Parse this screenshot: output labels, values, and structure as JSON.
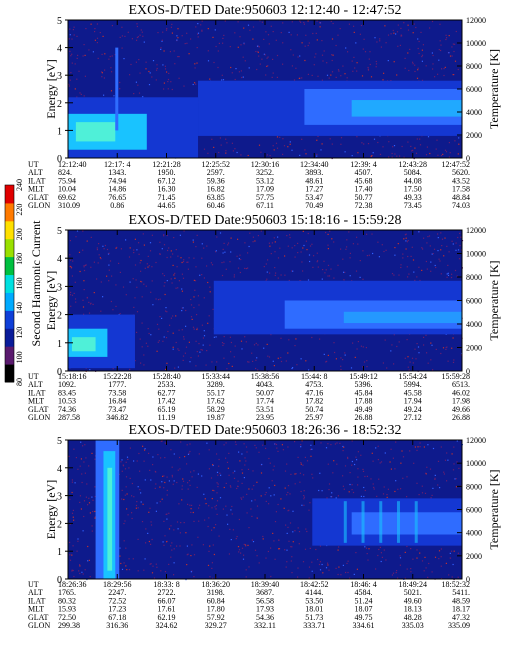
{
  "colorbar": {
    "label": "Second Harmonic Current",
    "ticks": [
      "80",
      "100",
      "120",
      "140",
      "160",
      "180",
      "200",
      "220",
      "240"
    ],
    "colors": [
      "#000000",
      "#5a1a6e",
      "#0a1c9a",
      "#0f3fd8",
      "#00aaff",
      "#00e0e0",
      "#00c040",
      "#9ae000",
      "#ffe000",
      "#ff7a00",
      "#e00000"
    ]
  },
  "row_labels": [
    "UT",
    "ALT",
    "ILAT",
    "MLT",
    "GLAT",
    "GLON"
  ],
  "chart_data": [
    {
      "type": "heatmap",
      "title": "EXOS-D/TED   Date:950603   12:12:40 - 12:47:52",
      "ylabel": "Energy [eV]",
      "y2label": "Temperature [K]",
      "ylim": [
        0,
        5
      ],
      "y2lim": [
        0,
        12000
      ],
      "yticks": [
        "0",
        "1",
        "2",
        "3",
        "4",
        "5"
      ],
      "y2ticks": [
        "0",
        "2000",
        "4000",
        "6000",
        "8000",
        "10000",
        "12000"
      ],
      "table": [
        [
          "12:12:40",
          "12:17: 4",
          "12:21:28",
          "12:25:52",
          "12:30:16",
          "12:34:40",
          "12:39: 4",
          "12:43:28",
          "12:47:52"
        ],
        [
          "824.",
          "1343.",
          "1950.",
          "2597.",
          "3252.",
          "3893.",
          "4507.",
          "5084.",
          "5620."
        ],
        [
          "75.94",
          "74.94",
          "67.12",
          "59.36",
          "53.12",
          "48.61",
          "45.68",
          "44.08",
          "43.52"
        ],
        [
          "10.04",
          "14.86",
          "16.30",
          "16.82",
          "17.09",
          "17.27",
          "17.40",
          "17.50",
          "17.58"
        ],
        [
          "69.62",
          "76.65",
          "71.45",
          "63.85",
          "57.75",
          "53.47",
          "50.77",
          "49.33",
          "48.84"
        ],
        [
          "310.09",
          "0.86",
          "44.65",
          "60.46",
          "67.11",
          "70.49",
          "72.38",
          "73.45",
          "74.03"
        ]
      ]
    },
    {
      "type": "heatmap",
      "title": "EXOS-D/TED   Date:950603   15:18:16 - 15:59:28",
      "ylabel": "Energy [eV]",
      "y2label": "Temperature [K]",
      "ylim": [
        0,
        5
      ],
      "y2lim": [
        0,
        12000
      ],
      "yticks": [
        "0",
        "1",
        "2",
        "3",
        "4",
        "5"
      ],
      "y2ticks": [
        "0",
        "2000",
        "4000",
        "6000",
        "8000",
        "10000",
        "12000"
      ],
      "table": [
        [
          "15:18:16",
          "15:22:28",
          "15:28:40",
          "15:33:44",
          "15:38:56",
          "15:44: 8",
          "15:49:12",
          "15:54:24",
          "15:59:28"
        ],
        [
          "1092.",
          "1777.",
          "2533.",
          "3289.",
          "4043.",
          "4753.",
          "5396.",
          "5994.",
          "6513."
        ],
        [
          "83.45",
          "73.58",
          "62.77",
          "55.17",
          "50.07",
          "47.16",
          "45.84",
          "45.58",
          "46.02"
        ],
        [
          "10.53",
          "16.84",
          "17.42",
          "17.62",
          "17.74",
          "17.82",
          "17.88",
          "17.94",
          "17.98"
        ],
        [
          "74.36",
          "73.47",
          "65.19",
          "58.29",
          "53.51",
          "50.74",
          "49.49",
          "49.24",
          "49.66"
        ],
        [
          "287.58",
          "346.82",
          "11.19",
          "19.87",
          "23.95",
          "25.97",
          "26.88",
          "27.12",
          "26.88"
        ]
      ]
    },
    {
      "type": "heatmap",
      "title": "EXOS-D/TED   Date:950603   18:26:36 - 18:52:32",
      "ylabel": "Energy [eV]",
      "y2label": "Temperature [K]",
      "ylim": [
        0,
        5
      ],
      "y2lim": [
        0,
        12000
      ],
      "yticks": [
        "0",
        "1",
        "2",
        "3",
        "4",
        "5"
      ],
      "y2ticks": [
        "0",
        "2000",
        "4000",
        "6000",
        "8000",
        "10000",
        "12000"
      ],
      "table": [
        [
          "18:26:36",
          "18:29:56",
          "18:33: 8",
          "18:36:20",
          "18:39:40",
          "18:42:52",
          "18:46: 4",
          "18:49:24",
          "18:52:32"
        ],
        [
          "1765.",
          "2247.",
          "2722.",
          "3198.",
          "3687.",
          "4144.",
          "4584.",
          "5021.",
          "5411."
        ],
        [
          "80.32",
          "72.52",
          "66.07",
          "60.84",
          "56.58",
          "53.50",
          "51.24",
          "49.60",
          "48.59"
        ],
        [
          "15.93",
          "17.23",
          "17.61",
          "17.80",
          "17.93",
          "18.01",
          "18.07",
          "18.13",
          "18.17"
        ],
        [
          "72.50",
          "67.18",
          "62.19",
          "57.92",
          "54.36",
          "51.73",
          "49.75",
          "48.28",
          "47.32"
        ],
        [
          "299.38",
          "316.36",
          "324.62",
          "329.27",
          "332.11",
          "333.71",
          "334.61",
          "335.03",
          "335.09"
        ]
      ]
    }
  ]
}
